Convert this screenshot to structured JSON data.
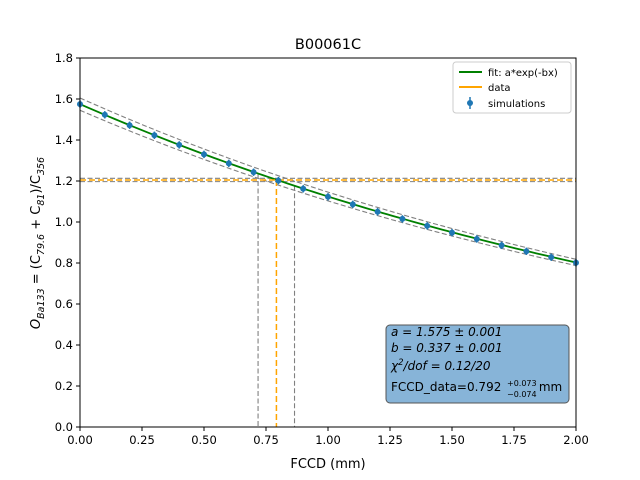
{
  "chart_data": {
    "type": "scatter",
    "title": "B00061C",
    "xlabel": "FCCD (mm)",
    "ylabel": {
      "main": "O",
      "main_sub": "Ba133",
      "rest1": " = (C",
      "sub1": "79.6",
      "rest2": " + C",
      "sub2": "81",
      "rest3": ")/C",
      "sub3": "356"
    },
    "xlim": [
      0,
      2.0
    ],
    "ylim": [
      0,
      1.8
    ],
    "xticks": [
      0.0,
      0.25,
      0.5,
      0.75,
      1.0,
      1.25,
      1.5,
      1.75,
      2.0
    ],
    "xtick_labels": [
      "0.00",
      "0.25",
      "0.50",
      "0.75",
      "1.00",
      "1.25",
      "1.50",
      "1.75",
      "2.00"
    ],
    "yticks": [
      0.0,
      0.2,
      0.4,
      0.6,
      0.8,
      1.0,
      1.2,
      1.4,
      1.6,
      1.8
    ],
    "ytick_labels": [
      "0.0",
      "0.2",
      "0.4",
      "0.6",
      "0.8",
      "1.0",
      "1.2",
      "1.4",
      "1.6",
      "1.8"
    ],
    "grid": false,
    "legend_position": "top-right",
    "series": [
      {
        "name": "fit: a*exp(-bx)",
        "kind": "line",
        "color": "#008000",
        "a": 1.575,
        "b": 0.337
      },
      {
        "name": "data",
        "kind": "line",
        "color": "#ffa500",
        "y_value": 1.205,
        "x_value": 0.792
      },
      {
        "name": "simulations",
        "kind": "errorbar",
        "color": "#1f77b4",
        "x": [
          0.0,
          0.1,
          0.2,
          0.3,
          0.4,
          0.5,
          0.6,
          0.7,
          0.8,
          0.9,
          1.0,
          1.1,
          1.2,
          1.3,
          1.4,
          1.5,
          1.6,
          1.7,
          1.8,
          1.9,
          2.0
        ],
        "y": [
          1.575,
          1.523,
          1.472,
          1.423,
          1.376,
          1.33,
          1.286,
          1.243,
          1.202,
          1.162,
          1.123,
          1.086,
          1.05,
          1.015,
          0.981,
          0.948,
          0.917,
          0.886,
          0.857,
          0.828,
          0.801
        ],
        "yerr": 0.018
      }
    ],
    "fit_band": {
      "color": "#808080",
      "upper_a": 1.605,
      "lower_a": 1.545,
      "b": 0.337
    },
    "data_band": {
      "color": "#808080",
      "y_lower": 1.197,
      "y_upper": 1.213,
      "x_lower": 0.718,
      "x_upper": 0.865
    },
    "info_box": {
      "line_a": "a = 1.575 ± 0.001",
      "line_b": "b = 0.337 ± 0.001",
      "line_chi_main": "χ",
      "line_chi_sup": "2",
      "line_chi_rest": "/dof = 0.12/20",
      "fccd_prefix": "FCCD_data=0.792",
      "fccd_plus": "+0.073",
      "fccd_minus": "−0.074",
      "fccd_unit": " mm",
      "color": "#87b4d8"
    }
  }
}
